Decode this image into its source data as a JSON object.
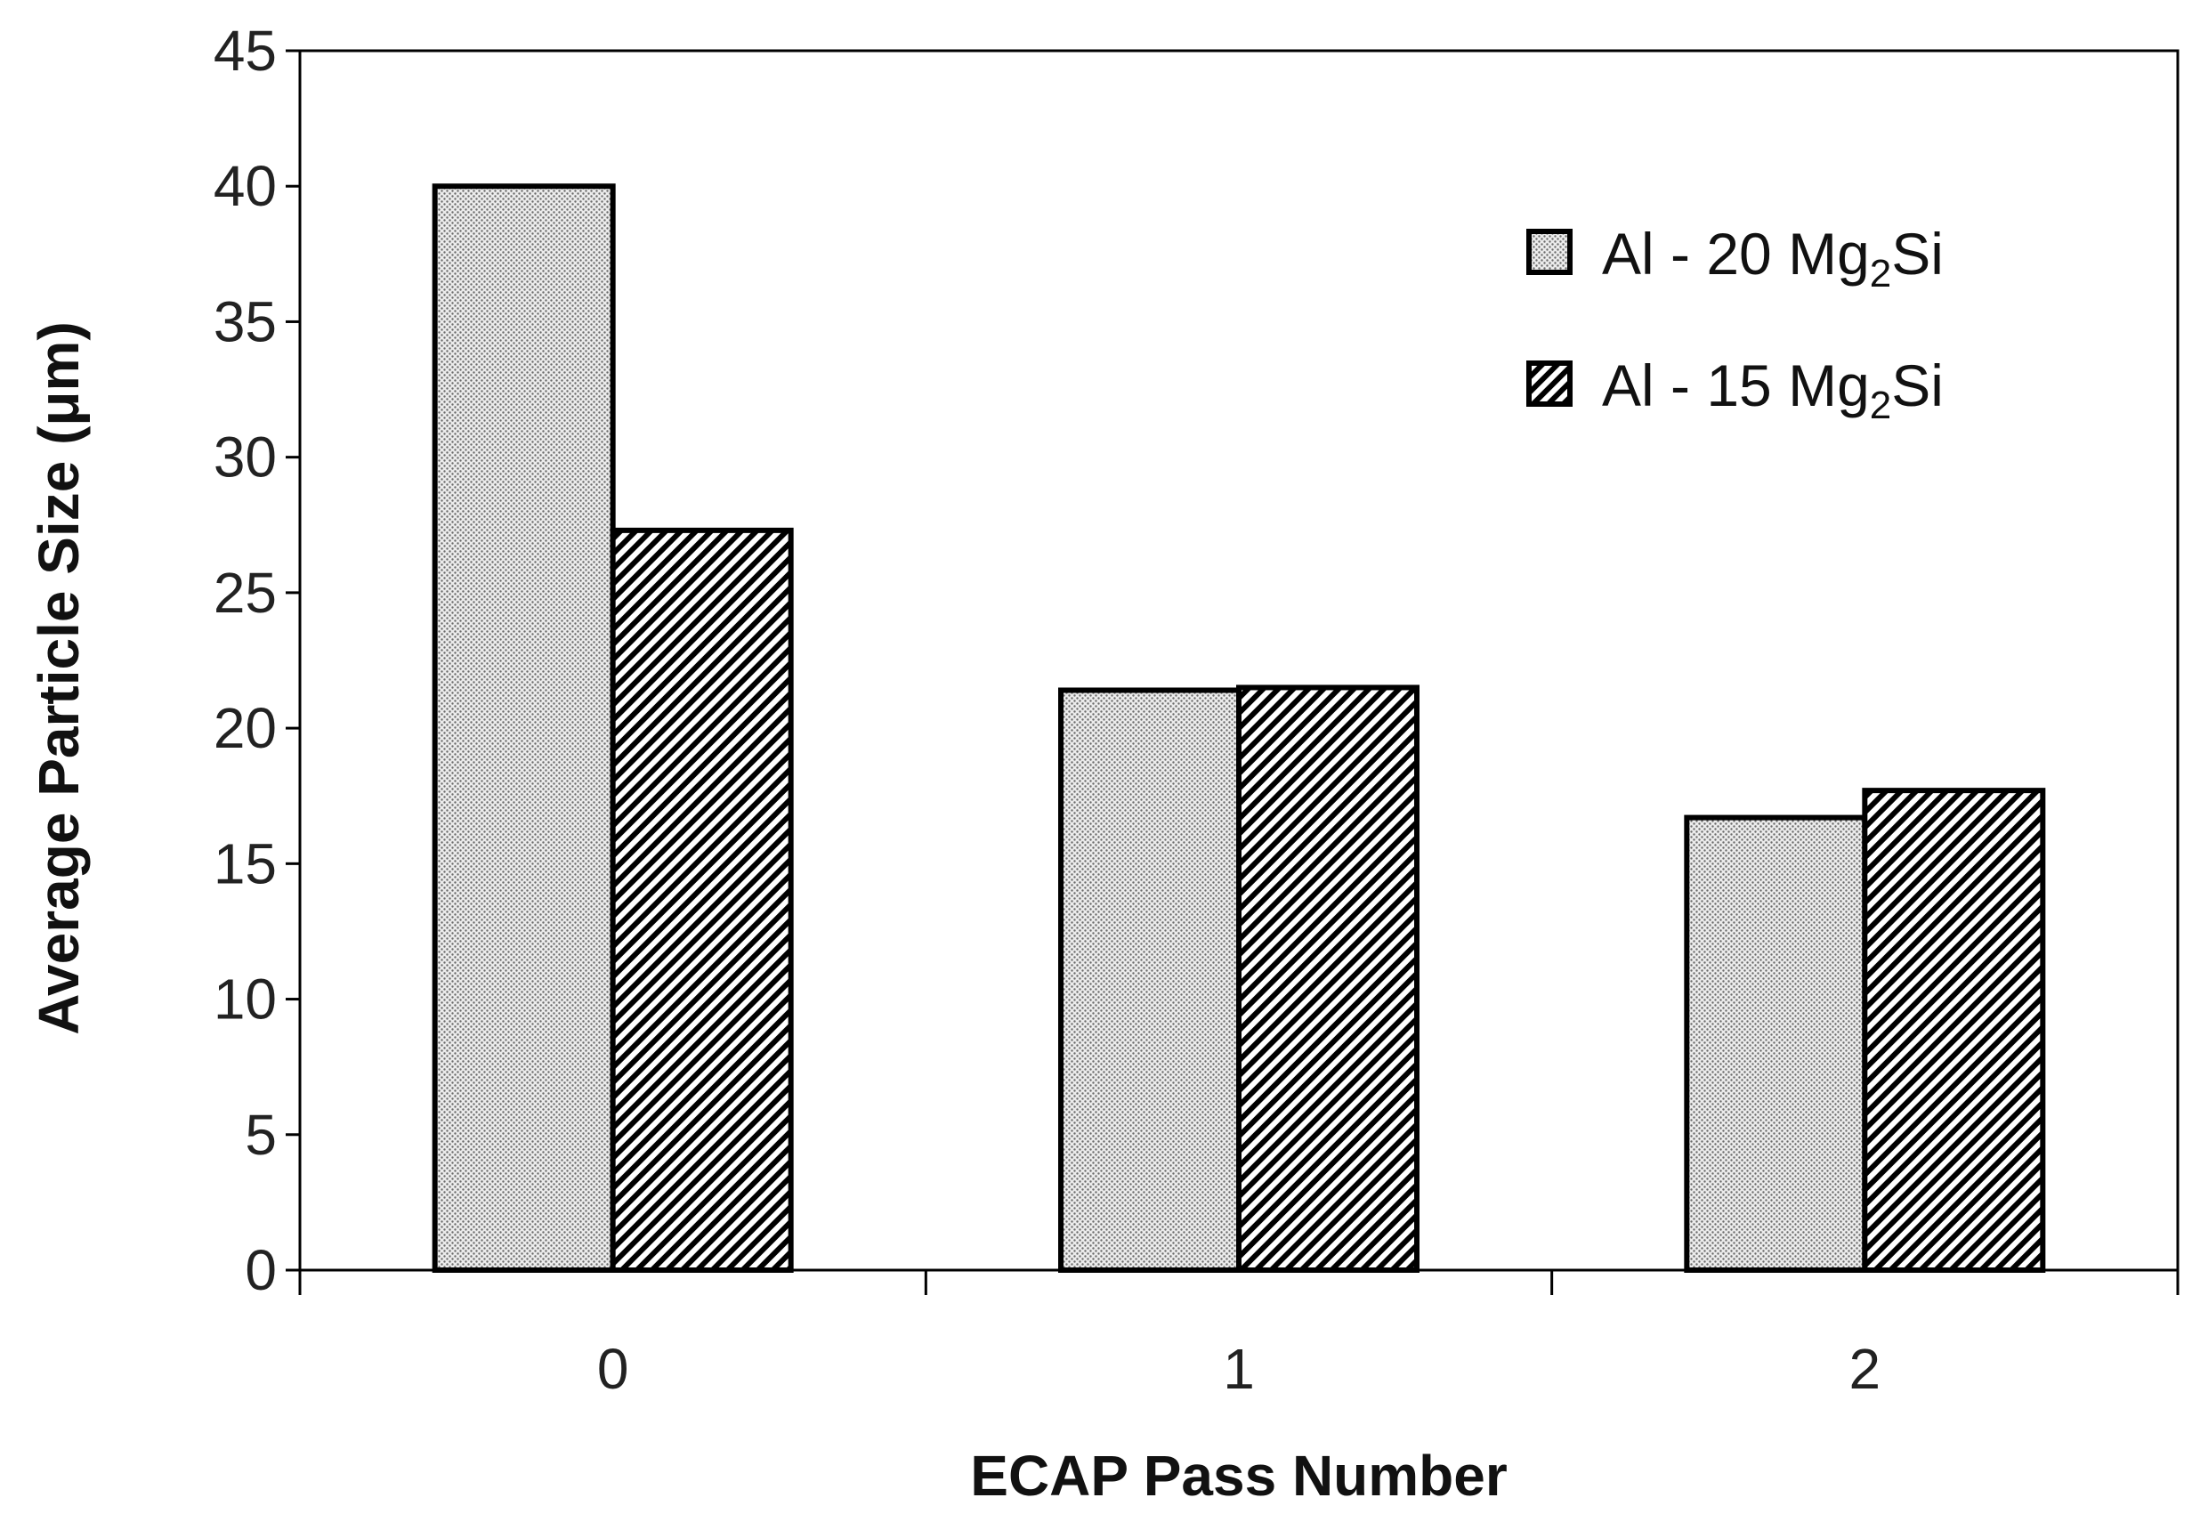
{
  "chart_data": {
    "type": "bar",
    "title": "",
    "xlabel": "ECAP Pass Number",
    "ylabel": "Average Particle Size (μm)",
    "categories": [
      "0",
      "1",
      "2"
    ],
    "series": [
      {
        "name": "Al - 20 Mg₂Si",
        "values": [
          40.0,
          21.4,
          16.7
        ],
        "pattern": "dots",
        "color": "#dcdcdc"
      },
      {
        "name": "Al - 15 Mg₂Si",
        "values": [
          27.3,
          21.5,
          17.7
        ],
        "pattern": "diagonal-hatch",
        "color": "#000000"
      }
    ],
    "ylim": [
      0,
      45
    ],
    "yticks": [
      0,
      5,
      10,
      15,
      20,
      25,
      30,
      35,
      40,
      45
    ],
    "grid": false,
    "legend_position": "top-right",
    "legend": [
      {
        "prefix": "Al - 20 Mg",
        "sub": "2",
        "suffix": "Si"
      },
      {
        "prefix": "Al - 15 Mg",
        "sub": "2",
        "suffix": "Si"
      }
    ]
  }
}
